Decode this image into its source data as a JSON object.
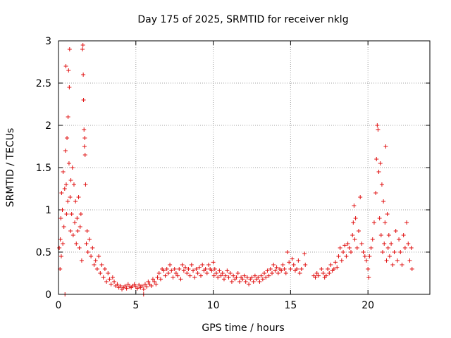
{
  "chart_data": {
    "type": "scatter",
    "title": "Day 175 of 2025, SRMTID for receiver nklg",
    "xlabel": "GPS time / hours",
    "ylabel": "SRMTID / TECUs",
    "xlim": [
      0,
      24
    ],
    "ylim": [
      0,
      3
    ],
    "xticks": [
      0,
      5,
      10,
      15,
      20
    ],
    "yticks": [
      0,
      0.5,
      1,
      1.5,
      2,
      2.5,
      3
    ],
    "xtick_labels": [
      "0",
      "5",
      "10",
      "15",
      "20"
    ],
    "ytick_labels": [
      "0",
      "0.5",
      "1",
      "1.5",
      "2",
      "2.5",
      "3"
    ],
    "grid": true,
    "marker": "plus",
    "series": [
      {
        "name": "SRMTID",
        "color": "#e01010",
        "points": [
          [
            0.05,
            0.55
          ],
          [
            0.1,
            0.3
          ],
          [
            0.12,
            0.65
          ],
          [
            0.15,
            0.9
          ],
          [
            0.18,
            0.45
          ],
          [
            0.2,
            1.2
          ],
          [
            0.25,
            1.0
          ],
          [
            0.28,
            0.6
          ],
          [
            0.3,
            1.45
          ],
          [
            0.35,
            0.8
          ],
          [
            0.4,
            1.25
          ],
          [
            0.42,
            0.0
          ],
          [
            0.45,
            1.7
          ],
          [
            0.48,
            2.7
          ],
          [
            0.5,
            1.3
          ],
          [
            0.52,
            0.95
          ],
          [
            0.55,
            1.85
          ],
          [
            0.6,
            1.1
          ],
          [
            0.62,
            2.1
          ],
          [
            0.65,
            2.65
          ],
          [
            0.68,
            1.55
          ],
          [
            0.7,
            2.45
          ],
          [
            0.72,
            2.9
          ],
          [
            0.75,
            1.15
          ],
          [
            0.78,
            0.75
          ],
          [
            0.8,
            1.35
          ],
          [
            0.85,
            0.95
          ],
          [
            0.9,
            1.5
          ],
          [
            0.95,
            0.7
          ],
          [
            1.0,
            1.3
          ],
          [
            1.05,
            0.85
          ],
          [
            1.1,
            1.1
          ],
          [
            1.15,
            0.6
          ],
          [
            1.2,
            0.9
          ],
          [
            1.25,
            0.75
          ],
          [
            1.3,
            1.15
          ],
          [
            1.35,
            0.55
          ],
          [
            1.4,
            0.8
          ],
          [
            1.45,
            0.95
          ],
          [
            1.5,
            0.4
          ],
          [
            1.55,
            2.9
          ],
          [
            1.58,
            2.95
          ],
          [
            1.6,
            2.6
          ],
          [
            1.62,
            2.3
          ],
          [
            1.65,
            1.95
          ],
          [
            1.68,
            1.75
          ],
          [
            1.7,
            1.85
          ],
          [
            1.72,
            1.65
          ],
          [
            1.75,
            1.3
          ],
          [
            1.8,
            0.6
          ],
          [
            1.85,
            0.75
          ],
          [
            1.9,
            0.5
          ],
          [
            2.0,
            0.65
          ],
          [
            2.1,
            0.45
          ],
          [
            2.2,
            0.55
          ],
          [
            2.3,
            0.35
          ],
          [
            2.4,
            0.4
          ],
          [
            2.5,
            0.3
          ],
          [
            2.6,
            0.45
          ],
          [
            2.7,
            0.25
          ],
          [
            2.8,
            0.35
          ],
          [
            2.9,
            0.2
          ],
          [
            3.0,
            0.3
          ],
          [
            3.1,
            0.15
          ],
          [
            3.2,
            0.25
          ],
          [
            3.3,
            0.18
          ],
          [
            3.4,
            0.12
          ],
          [
            3.5,
            0.2
          ],
          [
            3.6,
            0.15
          ],
          [
            3.7,
            0.1
          ],
          [
            3.8,
            0.12
          ],
          [
            3.9,
            0.08
          ],
          [
            4.0,
            0.1
          ],
          [
            4.1,
            0.06
          ],
          [
            4.2,
            0.08
          ],
          [
            4.3,
            0.1
          ],
          [
            4.4,
            0.07
          ],
          [
            4.5,
            0.12
          ],
          [
            4.6,
            0.09
          ],
          [
            4.7,
            0.08
          ],
          [
            4.8,
            0.1
          ],
          [
            4.9,
            0.12
          ],
          [
            5.0,
            0.09
          ],
          [
            5.1,
            0.07
          ],
          [
            5.2,
            0.11
          ],
          [
            5.3,
            0.08
          ],
          [
            5.4,
            0.1
          ],
          [
            5.5,
            0.06
          ],
          [
            5.6,
            0.12
          ],
          [
            5.7,
            0.09
          ],
          [
            5.5,
            0.0
          ],
          [
            5.8,
            0.15
          ],
          [
            5.9,
            0.12
          ],
          [
            6.0,
            0.1
          ],
          [
            6.1,
            0.18
          ],
          [
            6.2,
            0.15
          ],
          [
            6.3,
            0.12
          ],
          [
            6.4,
            0.2
          ],
          [
            6.5,
            0.25
          ],
          [
            6.6,
            0.18
          ],
          [
            6.7,
            0.3
          ],
          [
            6.8,
            0.28
          ],
          [
            6.9,
            0.22
          ],
          [
            7.0,
            0.3
          ],
          [
            7.1,
            0.25
          ],
          [
            7.2,
            0.35
          ],
          [
            7.3,
            0.28
          ],
          [
            7.4,
            0.2
          ],
          [
            7.5,
            0.3
          ],
          [
            7.6,
            0.25
          ],
          [
            7.7,
            0.22
          ],
          [
            7.8,
            0.3
          ],
          [
            7.9,
            0.18
          ],
          [
            8.0,
            0.35
          ],
          [
            8.1,
            0.28
          ],
          [
            8.2,
            0.32
          ],
          [
            8.3,
            0.25
          ],
          [
            8.4,
            0.3
          ],
          [
            8.5,
            0.22
          ],
          [
            8.6,
            0.35
          ],
          [
            8.7,
            0.28
          ],
          [
            8.8,
            0.2
          ],
          [
            8.9,
            0.3
          ],
          [
            9.0,
            0.25
          ],
          [
            9.1,
            0.32
          ],
          [
            9.2,
            0.22
          ],
          [
            9.3,
            0.35
          ],
          [
            9.4,
            0.28
          ],
          [
            9.5,
            0.3
          ],
          [
            9.6,
            0.25
          ],
          [
            9.7,
            0.35
          ],
          [
            9.8,
            0.3
          ],
          [
            9.9,
            0.28
          ],
          [
            10.0,
            0.38
          ],
          [
            10.05,
            0.22
          ],
          [
            10.1,
            0.3
          ],
          [
            10.2,
            0.25
          ],
          [
            10.3,
            0.2
          ],
          [
            10.4,
            0.28
          ],
          [
            10.5,
            0.22
          ],
          [
            10.6,
            0.25
          ],
          [
            10.7,
            0.18
          ],
          [
            10.8,
            0.22
          ],
          [
            10.9,
            0.28
          ],
          [
            11.0,
            0.2
          ],
          [
            11.1,
            0.25
          ],
          [
            11.2,
            0.15
          ],
          [
            11.3,
            0.22
          ],
          [
            11.4,
            0.18
          ],
          [
            11.5,
            0.2
          ],
          [
            11.6,
            0.25
          ],
          [
            11.7,
            0.15
          ],
          [
            11.8,
            0.2
          ],
          [
            11.9,
            0.18
          ],
          [
            12.0,
            0.22
          ],
          [
            12.1,
            0.15
          ],
          [
            12.2,
            0.2
          ],
          [
            12.3,
            0.12
          ],
          [
            12.4,
            0.18
          ],
          [
            12.5,
            0.2
          ],
          [
            12.6,
            0.15
          ],
          [
            12.7,
            0.22
          ],
          [
            12.8,
            0.18
          ],
          [
            12.9,
            0.2
          ],
          [
            13.0,
            0.15
          ],
          [
            13.1,
            0.22
          ],
          [
            13.2,
            0.18
          ],
          [
            13.3,
            0.25
          ],
          [
            13.4,
            0.2
          ],
          [
            13.5,
            0.28
          ],
          [
            13.6,
            0.22
          ],
          [
            13.7,
            0.3
          ],
          [
            13.8,
            0.25
          ],
          [
            13.9,
            0.35
          ],
          [
            14.0,
            0.28
          ],
          [
            14.1,
            0.32
          ],
          [
            14.2,
            0.25
          ],
          [
            14.3,
            0.3
          ],
          [
            14.4,
            0.28
          ],
          [
            14.5,
            0.35
          ],
          [
            14.6,
            0.3
          ],
          [
            14.7,
            0.25
          ],
          [
            14.8,
            0.5
          ],
          [
            14.9,
            0.38
          ],
          [
            15.0,
            0.3
          ],
          [
            15.1,
            0.42
          ],
          [
            15.2,
            0.35
          ],
          [
            15.3,
            0.28
          ],
          [
            15.4,
            0.3
          ],
          [
            15.5,
            0.4
          ],
          [
            15.6,
            0.25
          ],
          [
            15.7,
            0.3
          ],
          [
            15.9,
            0.48
          ],
          [
            15.95,
            0.35
          ],
          [
            16.5,
            0.22
          ],
          [
            16.6,
            0.2
          ],
          [
            16.7,
            0.25
          ],
          [
            16.8,
            0.22
          ],
          [
            17.0,
            0.3
          ],
          [
            17.1,
            0.25
          ],
          [
            17.2,
            0.2
          ],
          [
            17.3,
            0.22
          ],
          [
            17.4,
            0.3
          ],
          [
            17.5,
            0.25
          ],
          [
            17.6,
            0.35
          ],
          [
            17.7,
            0.28
          ],
          [
            17.8,
            0.3
          ],
          [
            17.9,
            0.38
          ],
          [
            18.0,
            0.32
          ],
          [
            18.1,
            0.45
          ],
          [
            18.2,
            0.55
          ],
          [
            18.3,
            0.4
          ],
          [
            18.4,
            0.5
          ],
          [
            18.5,
            0.58
          ],
          [
            18.6,
            0.45
          ],
          [
            18.7,
            0.6
          ],
          [
            18.8,
            0.55
          ],
          [
            18.9,
            0.5
          ],
          [
            19.0,
            0.7
          ],
          [
            19.05,
            0.85
          ],
          [
            19.1,
            1.05
          ],
          [
            19.15,
            0.65
          ],
          [
            19.2,
            0.9
          ],
          [
            19.3,
            0.55
          ],
          [
            19.4,
            0.75
          ],
          [
            19.5,
            1.15
          ],
          [
            19.6,
            0.6
          ],
          [
            19.7,
            0.5
          ],
          [
            19.8,
            0.45
          ],
          [
            19.9,
            0.4
          ],
          [
            20.0,
            0.3
          ],
          [
            20.05,
            0.2
          ],
          [
            20.1,
            0.45
          ],
          [
            20.2,
            0.55
          ],
          [
            20.3,
            0.65
          ],
          [
            20.4,
            0.85
          ],
          [
            20.5,
            1.2
          ],
          [
            20.55,
            1.6
          ],
          [
            20.6,
            2.0
          ],
          [
            20.65,
            1.95
          ],
          [
            20.7,
            1.45
          ],
          [
            20.75,
            0.9
          ],
          [
            20.8,
            1.55
          ],
          [
            20.85,
            0.7
          ],
          [
            20.9,
            1.3
          ],
          [
            20.95,
            0.5
          ],
          [
            21.0,
            1.1
          ],
          [
            21.05,
            0.6
          ],
          [
            21.1,
            0.85
          ],
          [
            21.15,
            1.75
          ],
          [
            21.2,
            0.4
          ],
          [
            21.25,
            0.95
          ],
          [
            21.3,
            0.55
          ],
          [
            21.35,
            0.7
          ],
          [
            21.4,
            0.45
          ],
          [
            21.5,
            0.6
          ],
          [
            21.6,
            0.35
          ],
          [
            21.7,
            0.5
          ],
          [
            21.8,
            0.75
          ],
          [
            21.9,
            0.4
          ],
          [
            22.0,
            0.65
          ],
          [
            22.1,
            0.5
          ],
          [
            22.2,
            0.35
          ],
          [
            22.3,
            0.7
          ],
          [
            22.4,
            0.55
          ],
          [
            22.5,
            0.85
          ],
          [
            22.6,
            0.6
          ],
          [
            22.7,
            0.4
          ],
          [
            22.8,
            0.55
          ],
          [
            22.85,
            0.3
          ]
        ]
      }
    ]
  }
}
